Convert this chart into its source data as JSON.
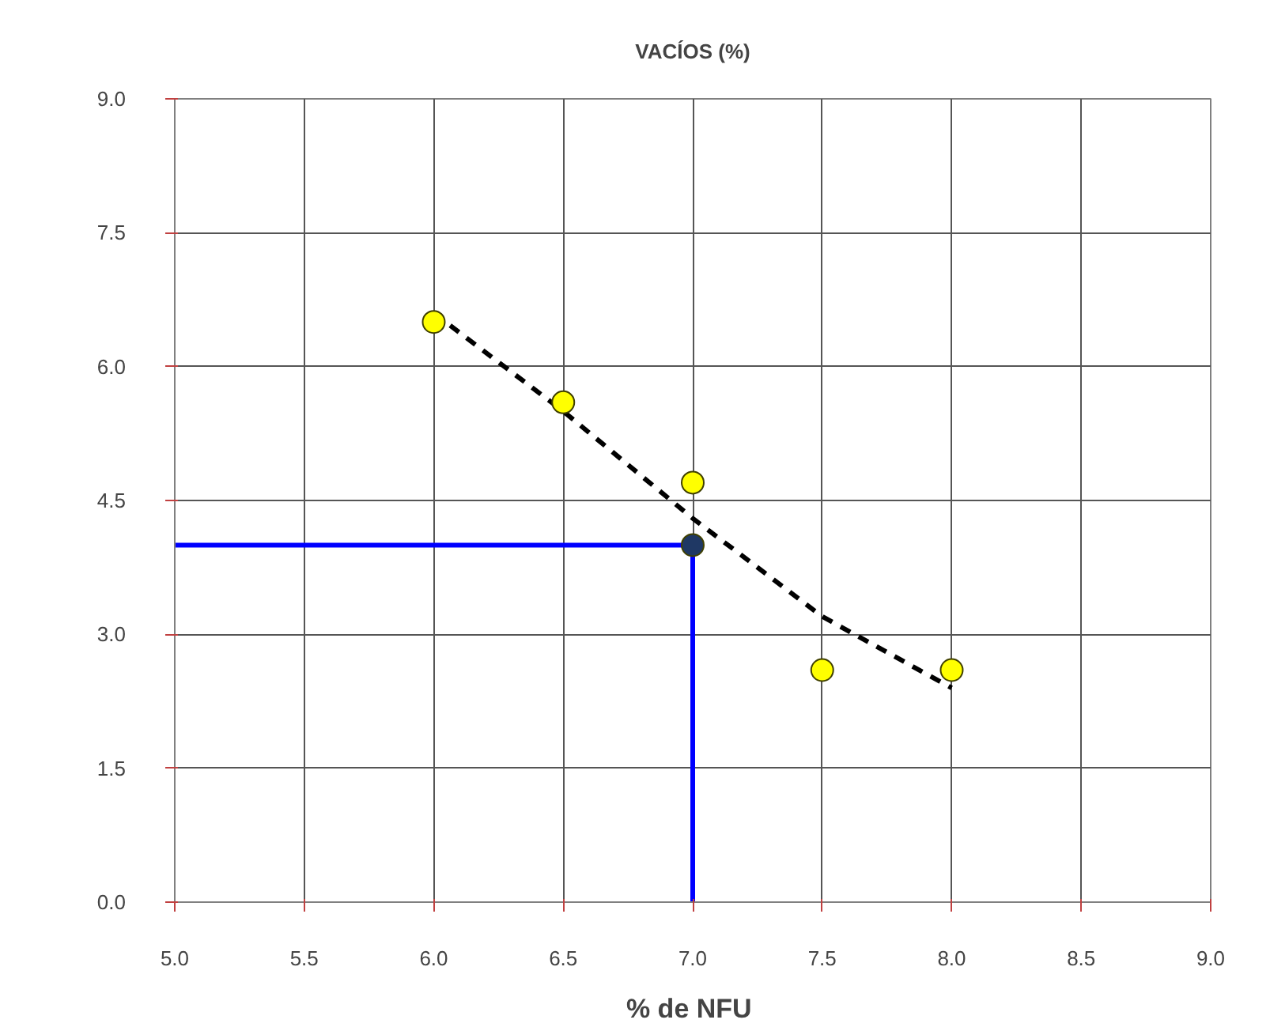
{
  "chart_data": {
    "type": "scatter",
    "title": "VACÍOS (%)",
    "xlabel": "%  de NFU",
    "xlim": [
      5.0,
      9.0
    ],
    "ylim": [
      0.0,
      9.0
    ],
    "xticks": [
      {
        "value": 5,
        "label": "5.0"
      },
      {
        "value": 5.5,
        "label": "5.5"
      },
      {
        "value": 6,
        "label": "6.0"
      },
      {
        "value": 6.5,
        "label": "6.5"
      },
      {
        "value": 7,
        "label": "7.0"
      },
      {
        "value": 7.5,
        "label": "7.5"
      },
      {
        "value": 8,
        "label": "8.0"
      },
      {
        "value": 8.5,
        "label": "8.5"
      },
      {
        "value": 9,
        "label": "9.0"
      }
    ],
    "yticks": [
      {
        "value": 0,
        "label": "0.0"
      },
      {
        "value": 1.5,
        "label": "1.5"
      },
      {
        "value": 3,
        "label": "3.0"
      },
      {
        "value": 4.5,
        "label": "4.5"
      },
      {
        "value": 6,
        "label": "6.0"
      },
      {
        "value": 7.5,
        "label": "7.5"
      },
      {
        "value": 9,
        "label": "9.0"
      }
    ],
    "grid": true,
    "series": [
      {
        "type": "line",
        "color": "#000000",
        "line_style": "dashed",
        "marker": "none",
        "x": [
          6.0,
          6.5,
          7.0,
          7.5,
          8.0
        ],
        "values": [
          6.6,
          5.5,
          4.3,
          3.2,
          2.4
        ]
      },
      {
        "color": "#ffff00",
        "marker": "circle",
        "x": [
          6.0,
          6.5,
          7.0,
          7.5,
          8.0
        ],
        "values": [
          6.5,
          5.6,
          4.7,
          2.6,
          2.6
        ]
      },
      {
        "type": "line",
        "color": "#0000ff",
        "line_style": "solid",
        "marker": "none",
        "x": [
          5.0,
          7.0,
          7.0
        ],
        "values": [
          4.0,
          4.0,
          0.0
        ]
      },
      {
        "color": "#1f3864",
        "marker": "circle",
        "x": [
          7.0
        ],
        "values": [
          4.0
        ]
      }
    ]
  }
}
